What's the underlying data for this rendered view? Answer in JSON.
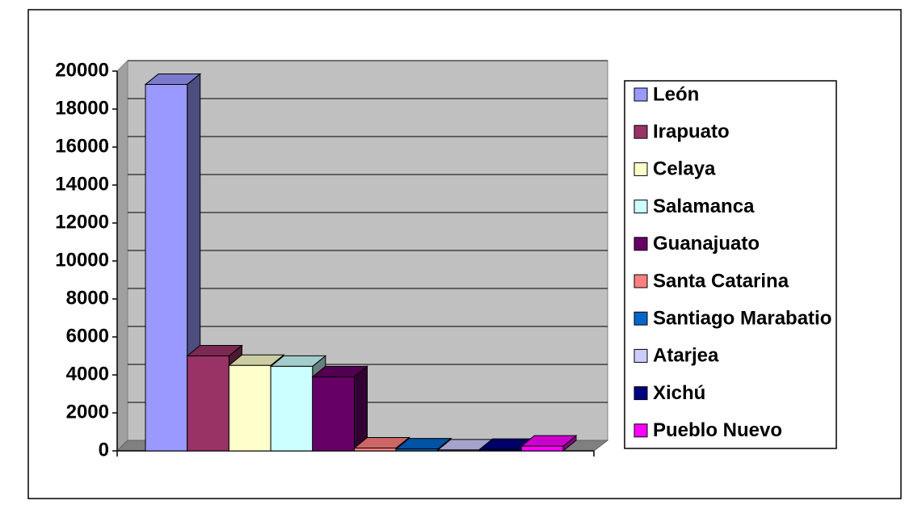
{
  "chart_data": {
    "type": "bar3d",
    "series": [
      {
        "name": "León",
        "color": "#9999ff",
        "values": [
          19300
        ]
      },
      {
        "name": "Irapuato",
        "color": "#993366",
        "values": [
          5000
        ]
      },
      {
        "name": "Celaya",
        "color": "#ffffcc",
        "values": [
          4500
        ]
      },
      {
        "name": "Salamanca",
        "color": "#ccffff",
        "values": [
          4450
        ]
      },
      {
        "name": "Guanajuato",
        "color": "#660066",
        "values": [
          3900
        ]
      },
      {
        "name": "Santa Catarina",
        "color": "#ff8080",
        "values": [
          150
        ]
      },
      {
        "name": "Santiago Marabatio",
        "color": "#0066cc",
        "values": [
          100
        ]
      },
      {
        "name": "Atarjea",
        "color": "#ccccff",
        "values": [
          50
        ]
      },
      {
        "name": "Xichú",
        "color": "#000080",
        "values": [
          80
        ]
      },
      {
        "name": "Pueblo Nuevo",
        "color": "#ff00ff",
        "values": [
          250
        ]
      }
    ],
    "ylim": [
      0,
      20000
    ],
    "yticks": [
      0,
      2000,
      4000,
      6000,
      8000,
      10000,
      12000,
      14000,
      16000,
      18000,
      20000
    ],
    "grid": true,
    "legend": "right"
  }
}
